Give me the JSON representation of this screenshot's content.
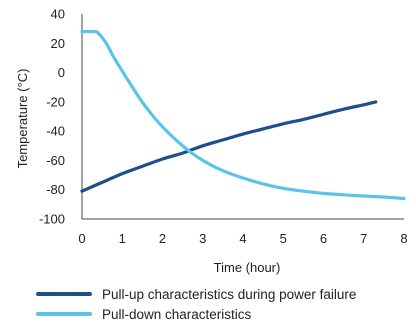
{
  "chart_data": {
    "type": "line",
    "xlabel": "Time (hour)",
    "ylabel": "Temperature (°C)",
    "xlim": [
      0,
      8
    ],
    "ylim": [
      -100,
      40
    ],
    "xticks": [
      0,
      1,
      2,
      3,
      4,
      5,
      6,
      7,
      8
    ],
    "yticks": [
      40,
      20,
      0,
      -20,
      -40,
      -60,
      -80,
      -100
    ],
    "grid": false,
    "legend_position": "bottom",
    "series": [
      {
        "name": "Pull-up characteristics during power failure",
        "color": "#1f4e8c",
        "x": [
          0,
          0.5,
          1,
          1.5,
          2,
          2.5,
          3,
          3.5,
          4,
          4.5,
          5,
          5.5,
          6,
          6.5,
          7,
          7.3
        ],
        "y": [
          -81,
          -75,
          -69,
          -64,
          -59,
          -55,
          -50,
          -46,
          -42,
          -38.5,
          -35,
          -32,
          -28.5,
          -25,
          -22,
          -20
        ]
      },
      {
        "name": "Pull-down characteristics",
        "color": "#5bc4e6",
        "x": [
          0,
          0.3,
          0.4,
          0.6,
          0.8,
          1,
          1.3,
          1.6,
          2,
          2.5,
          3,
          3.5,
          4,
          4.5,
          5,
          5.5,
          6,
          6.5,
          7,
          7.5,
          8
        ],
        "y": [
          28,
          28,
          27,
          20,
          10,
          1,
          -12,
          -24,
          -37,
          -50,
          -60,
          -67,
          -72,
          -76,
          -79,
          -81,
          -82.5,
          -83.5,
          -84.3,
          -85,
          -86
        ]
      }
    ]
  }
}
